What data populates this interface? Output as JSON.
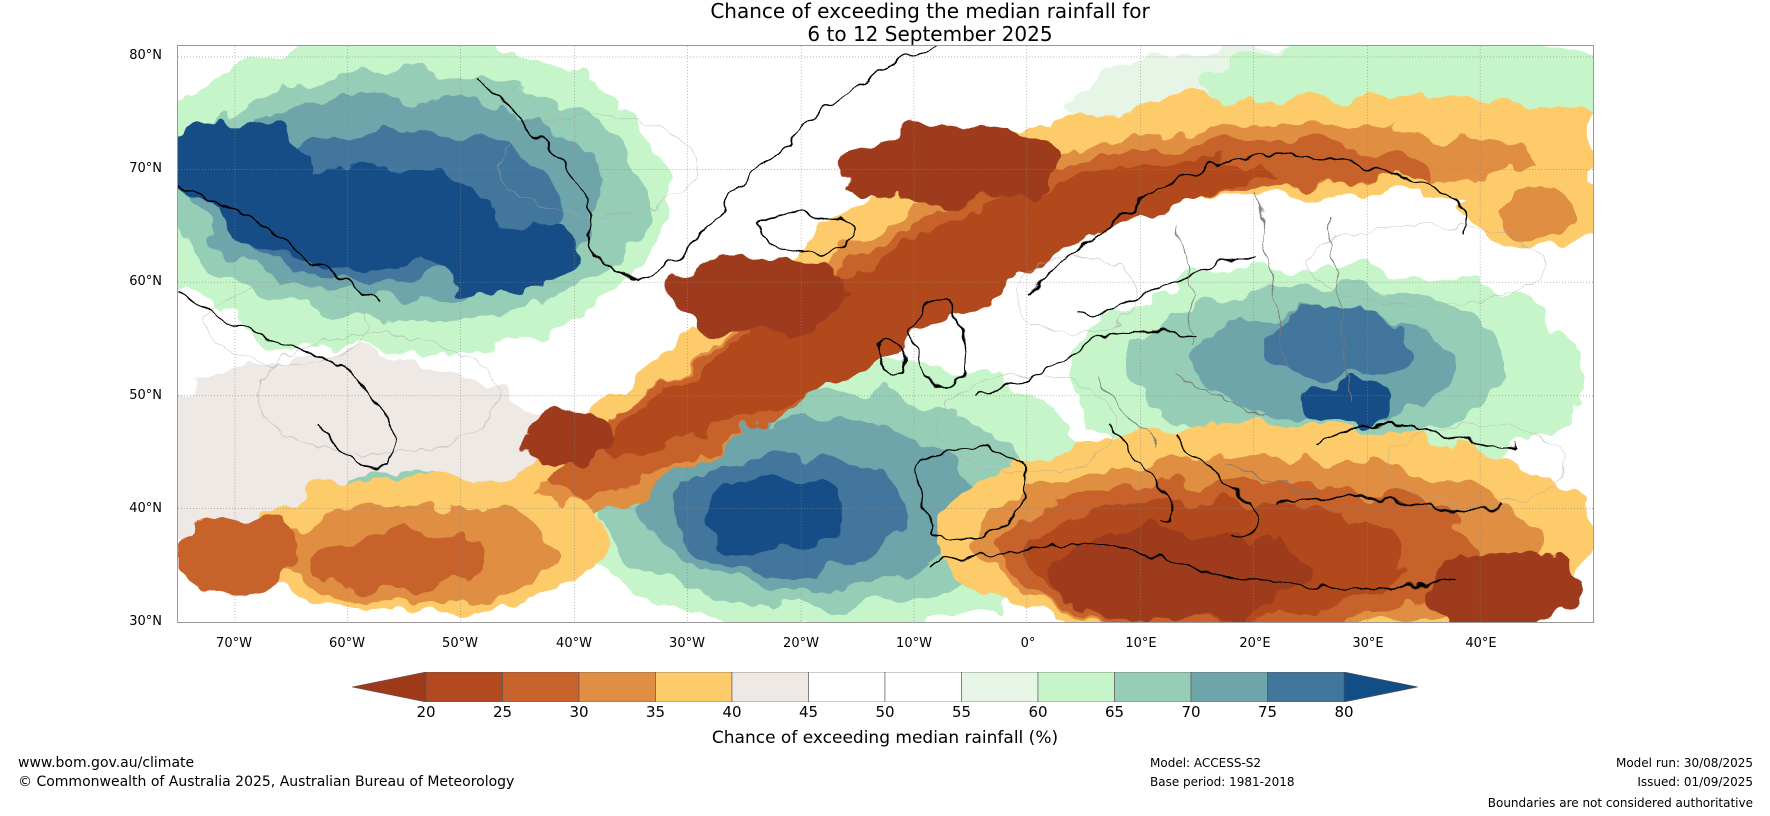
{
  "title": {
    "line1": "Chance of exceeding the median rainfall for",
    "line2": "6 to 12 September 2025"
  },
  "map": {
    "lat_labels": [
      "80°N",
      "70°N",
      "60°N",
      "50°N",
      "40°N",
      "30°N"
    ],
    "lon_labels": [
      "70°W",
      "60°W",
      "50°W",
      "40°W",
      "30°W",
      "20°W",
      "10°W",
      "0°",
      "10°E",
      "20°E",
      "30°E",
      "40°E"
    ],
    "extent": {
      "lon_min": -75,
      "lon_max": 50,
      "lat_min": 30,
      "lat_max": 81
    }
  },
  "colorbar": {
    "ticks": [
      "20",
      "25",
      "30",
      "35",
      "40",
      "45",
      "50",
      "55",
      "60",
      "65",
      "70",
      "75",
      "80"
    ],
    "colors": [
      "#9e3a1a",
      "#b2491f",
      "#c7622c",
      "#df8e43",
      "#fdcb6a",
      "#efe9e5",
      "#ffffff",
      "#ffffff",
      "#e6f5e6",
      "#c6f5c9",
      "#96cdb6",
      "#6da5aa",
      "#43769d",
      "#134d86"
    ],
    "label": "Chance of exceeding median rainfall (%)"
  },
  "footer": {
    "website": "www.bom.gov.au/climate",
    "copyright": "© Commonwealth of Australia 2025, Australian Bureau of Meteorology",
    "model": "Model: ACCESS-S2",
    "base_period": "Base period: 1981-2018",
    "model_run": "Model run: 30/08/2025",
    "issued": "Issued: 01/09/2025",
    "disclaimer": "Boundaries are not considered authoritative"
  }
}
